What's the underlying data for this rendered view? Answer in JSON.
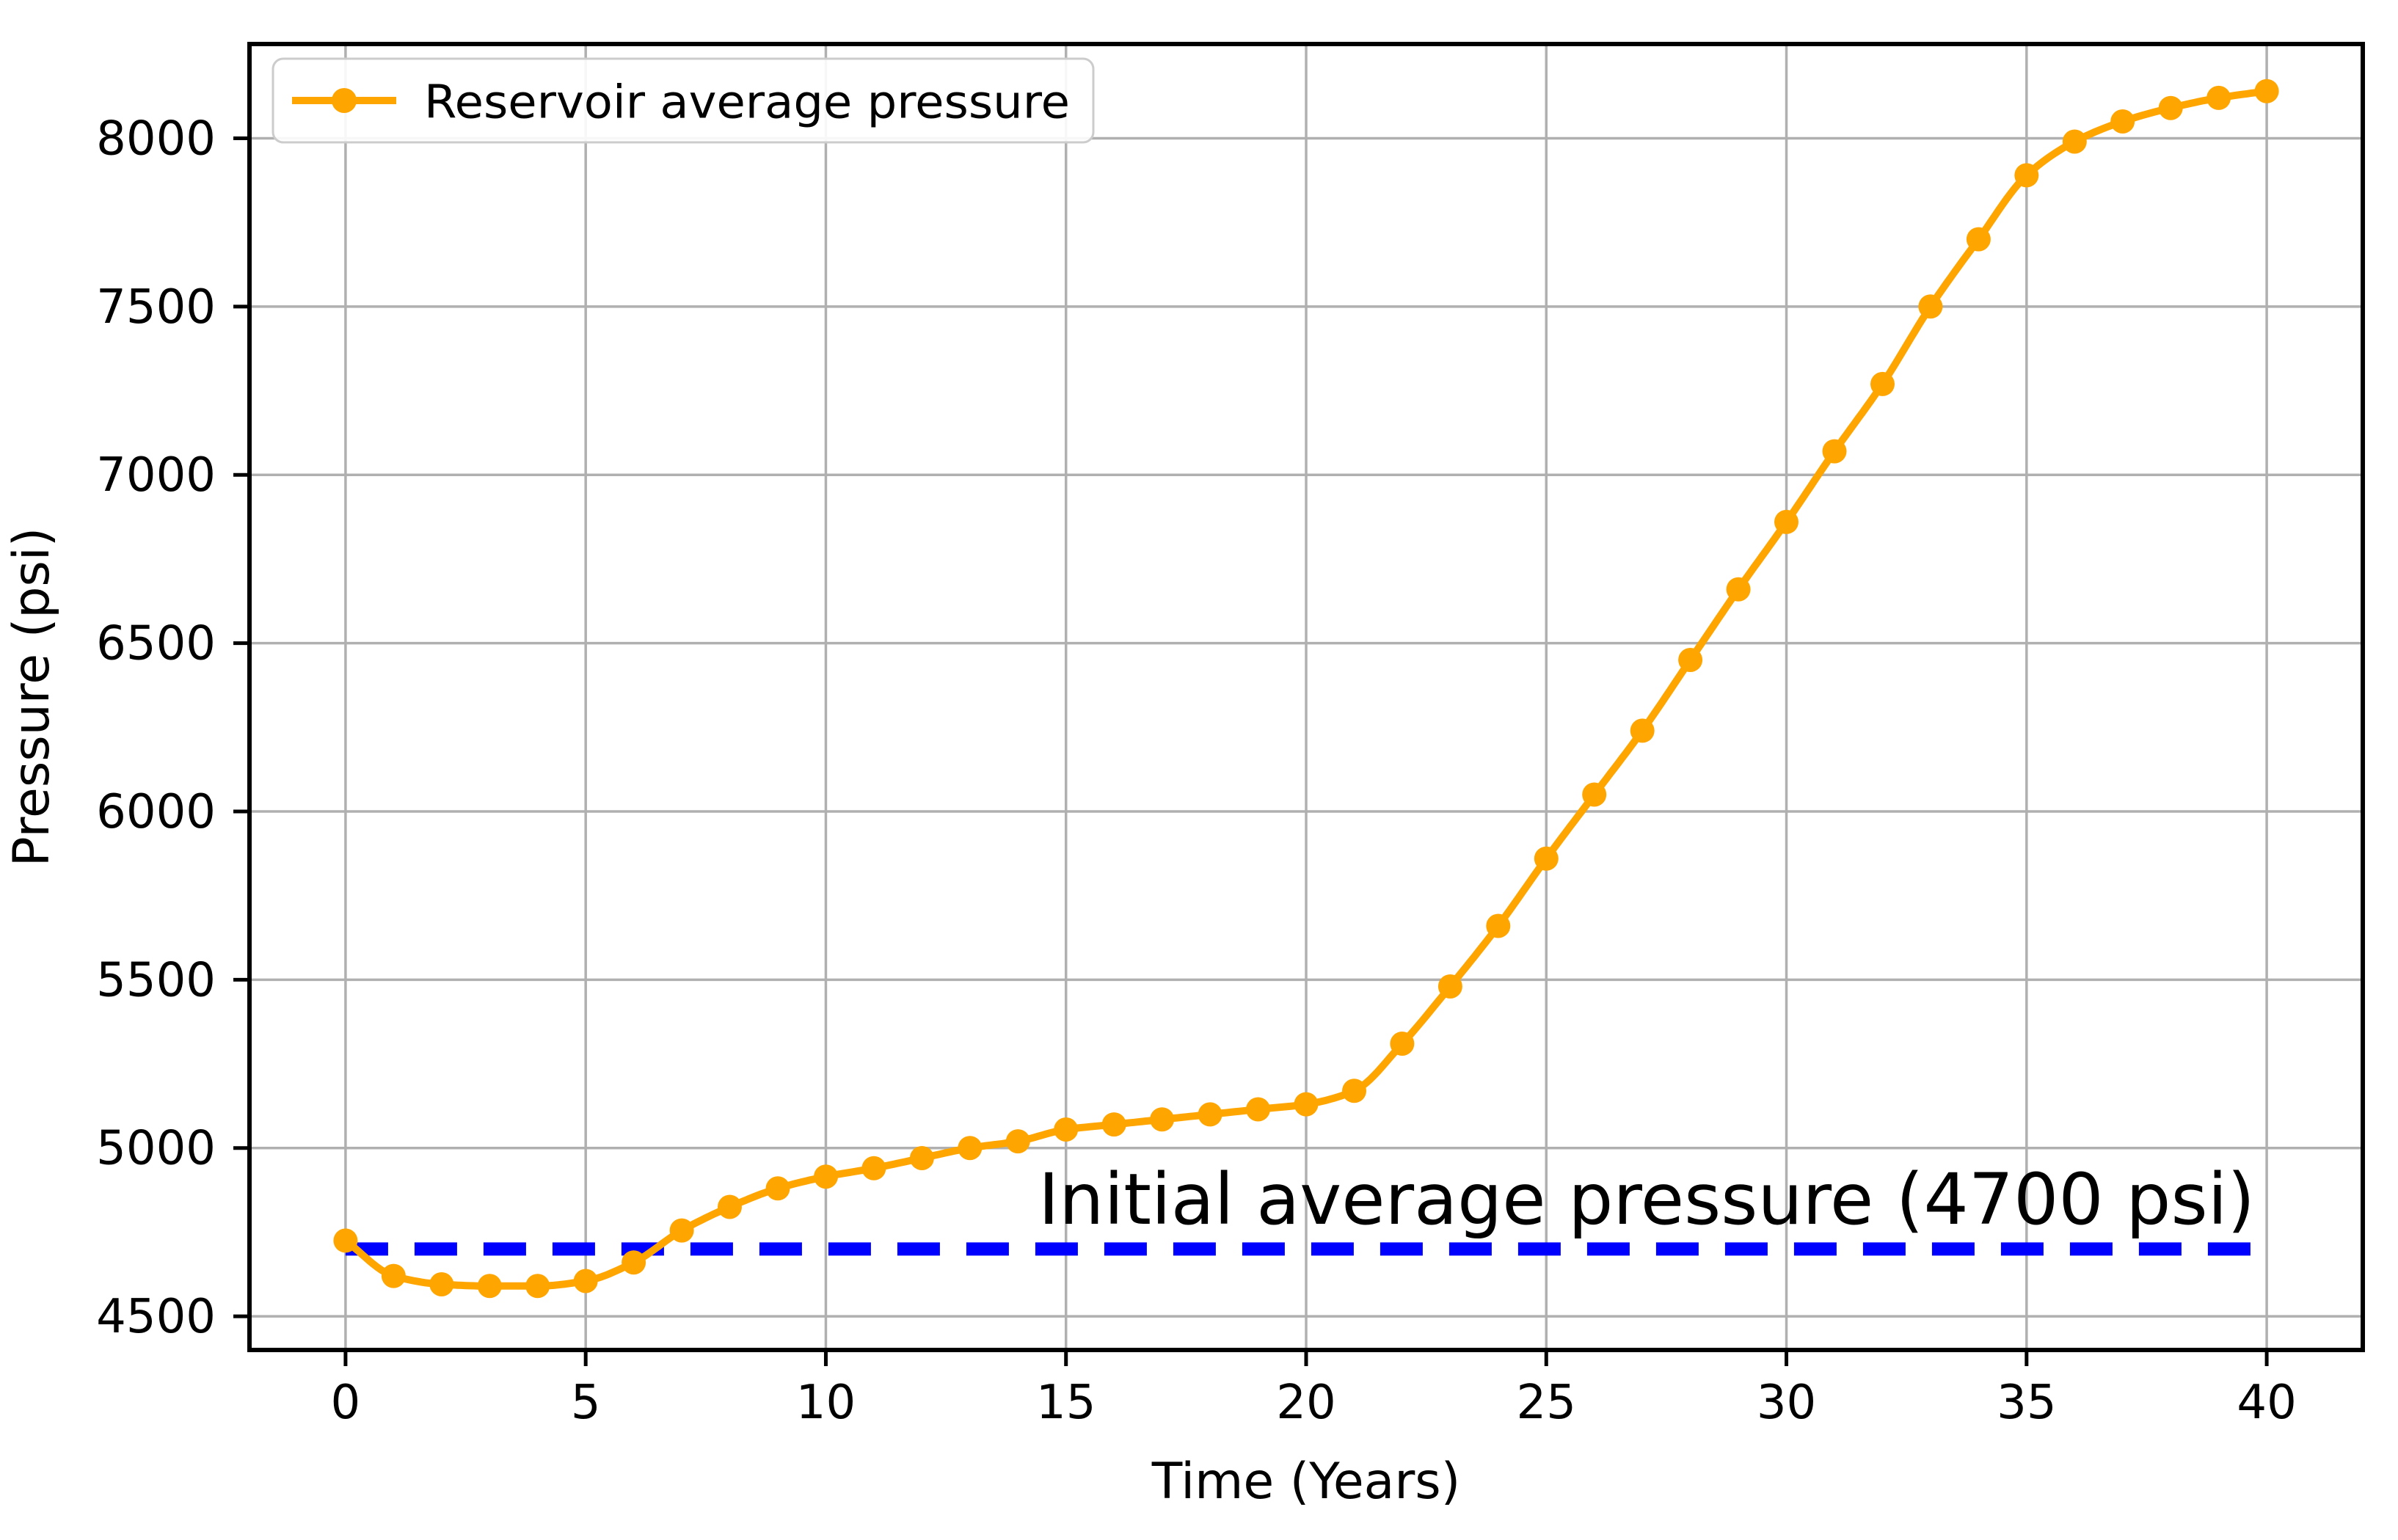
{
  "figure": {
    "background": "#ffffff"
  },
  "chart_data": {
    "type": "line",
    "title": "",
    "xlabel": "Time (Years)",
    "ylabel": "Pressure (psi)",
    "x": [
      0,
      1,
      2,
      3,
      4,
      5,
      6,
      7,
      8,
      9,
      10,
      11,
      12,
      13,
      14,
      15,
      16,
      17,
      18,
      19,
      20,
      21,
      22,
      23,
      24,
      25,
      26,
      27,
      28,
      29,
      30,
      31,
      32,
      33,
      34,
      35,
      36,
      37,
      38,
      39,
      40
    ],
    "series": [
      {
        "name": "Reservoir average pressure",
        "color": "#ffa500",
        "marker": "circle",
        "values": [
          4725,
          4620,
          4595,
          4590,
          4590,
          4605,
          4660,
          4755,
          4825,
          4880,
          4915,
          4940,
          4970,
          5000,
          5020,
          5055,
          5070,
          5085,
          5100,
          5115,
          5130,
          5170,
          5310,
          5480,
          5660,
          5860,
          6050,
          6240,
          6450,
          6660,
          6860,
          7070,
          7270,
          7500,
          7700,
          7890,
          7990,
          8050,
          8090,
          8120,
          8140
        ]
      }
    ],
    "reference_line": {
      "label": "Initial average pressure (4700 psi)",
      "value": 4700,
      "color": "#0000ff",
      "style": "dashed",
      "x_start": 0,
      "x_end": 40
    },
    "x_ticks": [
      0,
      5,
      10,
      15,
      20,
      25,
      30,
      35,
      40
    ],
    "y_ticks": [
      4500,
      5000,
      5500,
      6000,
      6500,
      7000,
      7500,
      8000
    ],
    "xlim": [
      -2,
      42
    ],
    "ylim": [
      4400,
      8280
    ],
    "grid": true,
    "grid_color": "#b0b0b0",
    "axis_color": "#000000",
    "legend_position": "upper-left"
  }
}
